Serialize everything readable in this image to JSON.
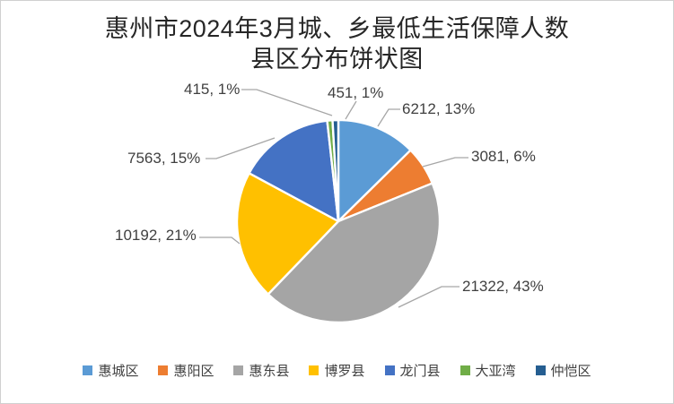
{
  "title": {
    "line1": "惠州市2024年3月城、乡最低生活保障人数",
    "line2": "县区分布饼状图"
  },
  "chart_data": {
    "type": "pie",
    "title": "惠州市2024年3月城、乡最低生活保障人数县区分布饼状图",
    "categories": [
      "惠城区",
      "惠阳区",
      "惠东县",
      "博罗县",
      "龙门县",
      "大亚湾",
      "仲恺区"
    ],
    "values": [
      6212,
      3081,
      21322,
      10192,
      7563,
      415,
      451
    ],
    "percents": [
      13,
      6,
      43,
      21,
      15,
      1,
      1
    ],
    "data_labels": [
      "6212, 13%",
      "3081, 6%",
      "21322, 43%",
      "10192, 21%",
      "7563, 15%",
      "415, 1%",
      "451, 1%"
    ],
    "colors": [
      "#5B9BD5",
      "#ED7D31",
      "#A5A5A5",
      "#FFC000",
      "#4472C4",
      "#70AD47",
      "#255E91"
    ],
    "start_angle_deg": 0,
    "direction": "clockwise",
    "legend_position": "bottom",
    "slice_border_color": "#FFFFFF",
    "leader_line_color": "#A6A6A6"
  },
  "ui_colors": {
    "background": "#FFFFFF",
    "frame_border": "#D0D0D0",
    "title_text": "#262626",
    "label_text": "#404040"
  }
}
